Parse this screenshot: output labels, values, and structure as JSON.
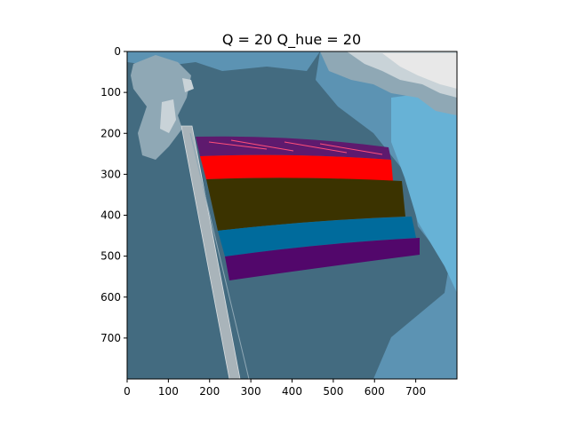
{
  "title": "Q = 20 Q_hue = 20",
  "image": {
    "kind": "posterized photo of a rainbow flag on a pole against a blue sky",
    "x_range": [
      0,
      800
    ],
    "y_range": [
      0,
      800
    ],
    "y_inverted": true
  },
  "axes": {
    "x_ticks": [
      {
        "value": 0,
        "label": "0"
      },
      {
        "value": 100,
        "label": "100"
      },
      {
        "value": 200,
        "label": "200"
      },
      {
        "value": 300,
        "label": "300"
      },
      {
        "value": 400,
        "label": "400"
      },
      {
        "value": 500,
        "label": "500"
      },
      {
        "value": 600,
        "label": "600"
      },
      {
        "value": 700,
        "label": "700"
      }
    ],
    "y_ticks": [
      {
        "value": 0,
        "label": "0"
      },
      {
        "value": 100,
        "label": "100"
      },
      {
        "value": 200,
        "label": "200"
      },
      {
        "value": 300,
        "label": "300"
      },
      {
        "value": 400,
        "label": "400"
      },
      {
        "value": 500,
        "label": "500"
      },
      {
        "value": 600,
        "label": "600"
      },
      {
        "value": 700,
        "label": "700"
      }
    ]
  },
  "colors": {
    "sky_dark": "#436b80",
    "sky_mid": "#5c93b3",
    "sky_light": "#67b2d6",
    "cloud_gray": "#8fa8b5",
    "cloud_light": "#c9d3d8",
    "cloud_white": "#e8e8e8",
    "pole": "#a9b4ba",
    "stripe_purple_top": "#5e1a6e",
    "stripe_red": "#ff0000",
    "stripe_olive": "#3b3300",
    "stripe_blue": "#006b9c",
    "stripe_purple": "#52076b"
  }
}
